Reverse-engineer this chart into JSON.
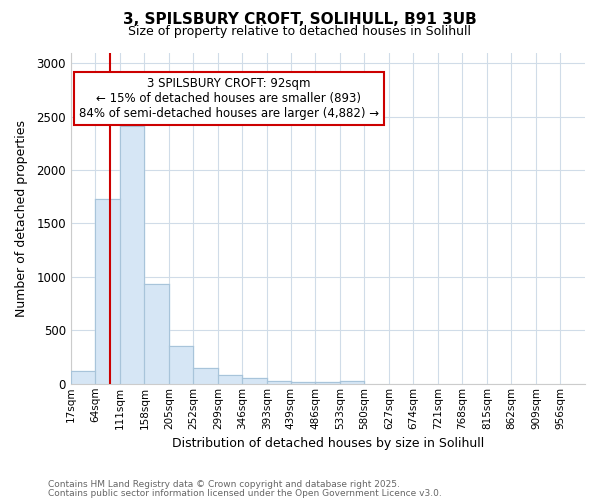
{
  "title_line1": "3, SPILSBURY CROFT, SOLIHULL, B91 3UB",
  "title_line2": "Size of property relative to detached houses in Solihull",
  "xlabel": "Distribution of detached houses by size in Solihull",
  "ylabel": "Number of detached properties",
  "bin_edges": [
    17,
    64,
    111,
    158,
    205,
    252,
    299,
    346,
    393,
    439,
    486,
    533,
    580,
    627,
    674,
    721,
    768,
    815,
    862,
    909,
    956,
    1003
  ],
  "bar_heights": [
    120,
    1730,
    2410,
    930,
    350,
    150,
    80,
    55,
    30,
    20,
    12,
    30,
    0,
    0,
    0,
    0,
    0,
    0,
    0,
    0,
    0
  ],
  "bar_color": "#d6e6f5",
  "bar_edgecolor": "#a8c4da",
  "vline_x": 92,
  "vline_color": "#cc0000",
  "annotation_title": "3 SPILSBURY CROFT: 92sqm",
  "annotation_line2": "← 15% of detached houses are smaller (893)",
  "annotation_line3": "84% of semi-detached houses are larger (4,882) →",
  "annotation_box_color": "#ffffff",
  "annotation_box_edgecolor": "#cc0000",
  "ylim": [
    0,
    3100
  ],
  "footnote1": "Contains HM Land Registry data © Crown copyright and database right 2025.",
  "footnote2": "Contains public sector information licensed under the Open Government Licence v3.0.",
  "background_color": "#ffffff",
  "grid_color": "#d0dce8",
  "tick_labels": [
    "17sqm",
    "64sqm",
    "111sqm",
    "158sqm",
    "205sqm",
    "252sqm",
    "299sqm",
    "346sqm",
    "393sqm",
    "439sqm",
    "486sqm",
    "533sqm",
    "580sqm",
    "627sqm",
    "674sqm",
    "721sqm",
    "768sqm",
    "815sqm",
    "862sqm",
    "909sqm",
    "956sqm"
  ]
}
